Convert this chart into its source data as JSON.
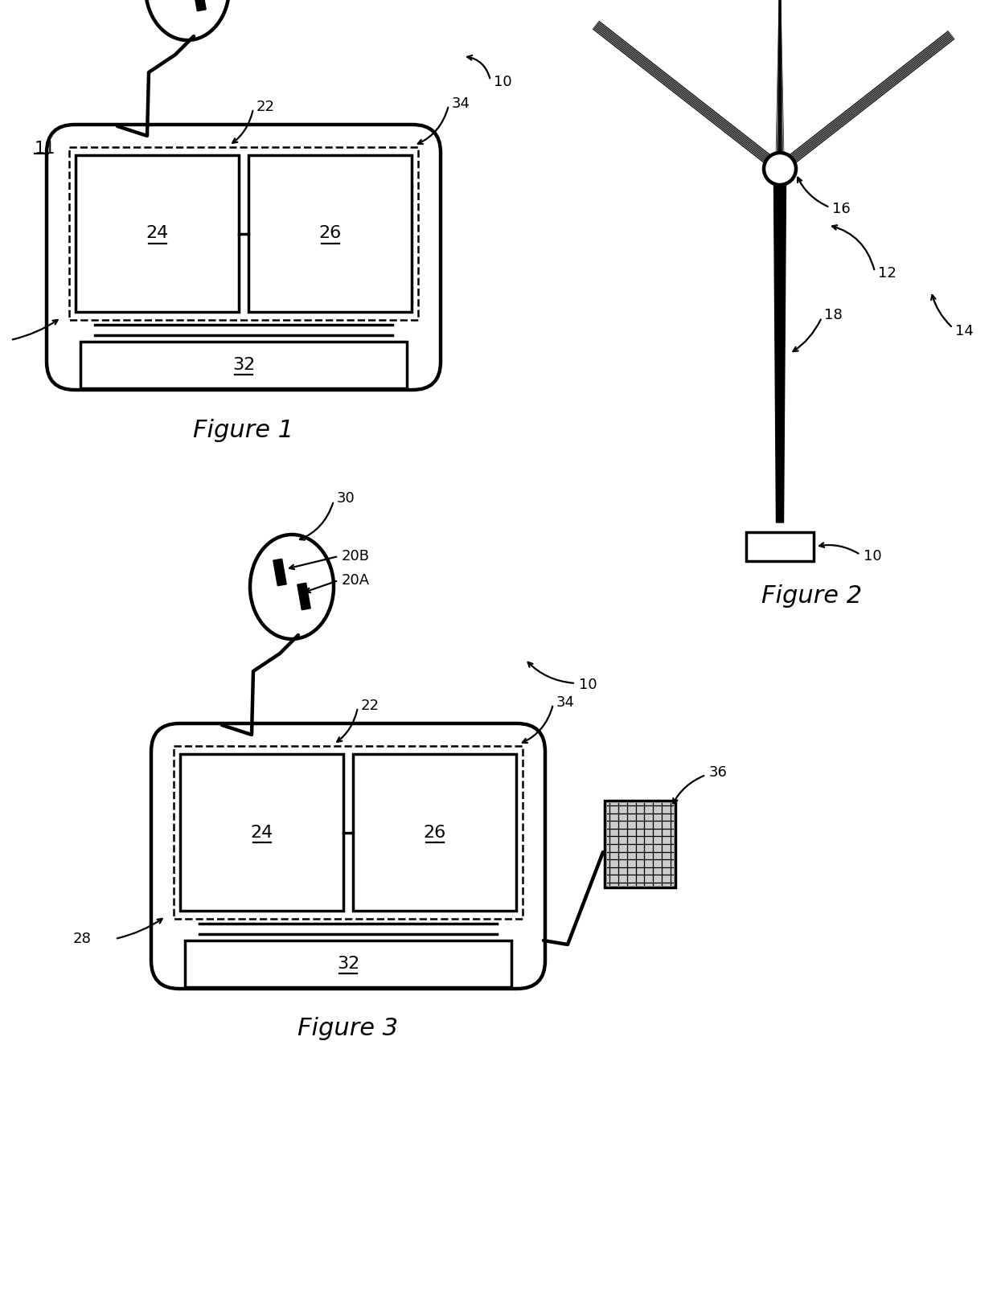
{
  "bg_color": "#ffffff",
  "fig1_label": "Figure 1",
  "fig2_label": "Figure 2",
  "fig3_label": "Figure 3",
  "label_10": "10",
  "label_11": "11",
  "label_12": "12",
  "label_14": "14",
  "label_16": "16",
  "label_18": "18",
  "label_20A": "20A",
  "label_20B": "20B",
  "label_22": "22",
  "label_24": "24",
  "label_26": "26",
  "label_28": "28",
  "label_30": "30",
  "label_32": "32",
  "label_34": "34",
  "label_36": "36"
}
